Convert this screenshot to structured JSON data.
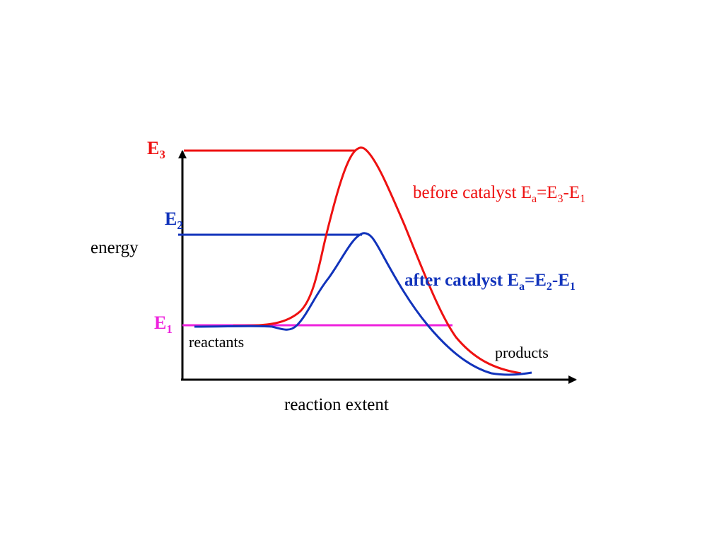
{
  "colors": {
    "before": "#ee1111",
    "after": "#1133bb",
    "e1": "#ee22dd",
    "axis": "#000000"
  },
  "labels": {
    "e3": {
      "main": "E",
      "sub": "3"
    },
    "e2": {
      "main": "E",
      "sub": "2"
    },
    "e1": {
      "main": "E",
      "sub": "1"
    },
    "y_axis": "energy",
    "x_axis": "reaction extent",
    "reactants": "reactants",
    "products": "products",
    "before": {
      "prefix": "before catalyst E",
      "sub_a": "a",
      "eq": "=E",
      "sub_1": "3",
      "dash": "-E",
      "sub_2": "1"
    },
    "after": {
      "prefix": "after catalyst E",
      "sub_a": "a",
      "eq": "=E",
      "sub_1": "2",
      "dash": "-E",
      "sub_2": "1"
    }
  },
  "icons": {
    "axis_arrows": "arrowhead"
  }
}
